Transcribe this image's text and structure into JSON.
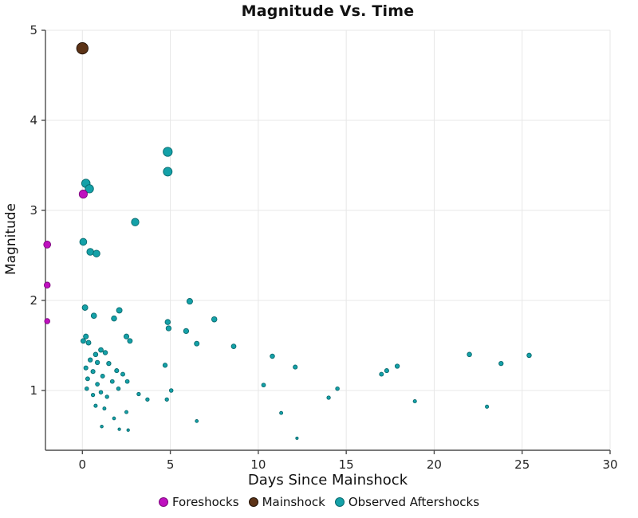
{
  "figure": {
    "background": "#FFFFFF"
  },
  "chart_data": {
    "type": "scatter",
    "title": "Magnitude Vs. Time",
    "xlabel": "Days Since Mainshock",
    "ylabel": "Magnitude",
    "xlim": [
      -2.1,
      30
    ],
    "ylim": [
      0.336,
      5.0
    ],
    "xticks": [
      0,
      5,
      10,
      15,
      20,
      25,
      30
    ],
    "yticks": [
      1,
      2,
      3,
      4,
      5
    ],
    "grid": true,
    "legend_position": "bottom",
    "size_encoding": "marker size proportional to magnitude",
    "style": {
      "grid_color": "#E7E7E7",
      "spine_color": "#4D4D4D",
      "tick_label_color": "#262626",
      "title_color": "#111111"
    },
    "series": [
      {
        "name": "Foreshocks",
        "color": "#BF10BF",
        "edge_color": "#7D087D",
        "points": [
          [
            -2.0,
            2.62
          ],
          [
            -2.0,
            2.17
          ],
          [
            -2.0,
            1.77
          ],
          [
            0.05,
            3.18
          ]
        ]
      },
      {
        "name": "Mainshock",
        "color": "#5C3317",
        "edge_color": "#1F1005",
        "points": [
          [
            0.0,
            4.8
          ]
        ]
      },
      {
        "name": "Observed Aftershocks",
        "color": "#14A1A8",
        "edge_color": "#0A6A6E",
        "points": [
          [
            4.85,
            3.65
          ],
          [
            4.85,
            3.43
          ],
          [
            0.2,
            3.3
          ],
          [
            0.4,
            3.24
          ],
          [
            3.0,
            2.87
          ],
          [
            0.05,
            2.65
          ],
          [
            0.45,
            2.54
          ],
          [
            0.8,
            2.52
          ],
          [
            6.1,
            1.99
          ],
          [
            0.15,
            1.92
          ],
          [
            2.1,
            1.89
          ],
          [
            0.65,
            1.83
          ],
          [
            1.8,
            1.8
          ],
          [
            7.5,
            1.79
          ],
          [
            4.85,
            1.76
          ],
          [
            4.9,
            1.69
          ],
          [
            5.9,
            1.66
          ],
          [
            0.2,
            1.6
          ],
          [
            2.5,
            1.6
          ],
          [
            2.7,
            1.55
          ],
          [
            0.05,
            1.55
          ],
          [
            0.35,
            1.53
          ],
          [
            6.5,
            1.52
          ],
          [
            8.6,
            1.49
          ],
          [
            1.05,
            1.45
          ],
          [
            1.3,
            1.42
          ],
          [
            0.75,
            1.4
          ],
          [
            22.0,
            1.4
          ],
          [
            25.4,
            1.39
          ],
          [
            10.8,
            1.38
          ],
          [
            0.45,
            1.34
          ],
          [
            0.85,
            1.31
          ],
          [
            1.5,
            1.3
          ],
          [
            23.8,
            1.3
          ],
          [
            4.7,
            1.28
          ],
          [
            17.9,
            1.27
          ],
          [
            12.1,
            1.26
          ],
          [
            0.2,
            1.25
          ],
          [
            17.3,
            1.22
          ],
          [
            1.95,
            1.22
          ],
          [
            0.6,
            1.21
          ],
          [
            2.3,
            1.18
          ],
          [
            17.0,
            1.18
          ],
          [
            1.15,
            1.16
          ],
          [
            0.3,
            1.13
          ],
          [
            1.7,
            1.1
          ],
          [
            2.55,
            1.1
          ],
          [
            0.85,
            1.07
          ],
          [
            10.3,
            1.06
          ],
          [
            0.25,
            1.02
          ],
          [
            2.05,
            1.02
          ],
          [
            14.5,
            1.02
          ],
          [
            5.05,
            1.0
          ],
          [
            1.05,
            0.98
          ],
          [
            3.2,
            0.96
          ],
          [
            0.6,
            0.95
          ],
          [
            1.4,
            0.93
          ],
          [
            14.0,
            0.92
          ],
          [
            3.7,
            0.9
          ],
          [
            4.8,
            0.9
          ],
          [
            18.9,
            0.88
          ],
          [
            0.75,
            0.83
          ],
          [
            23.0,
            0.82
          ],
          [
            1.25,
            0.8
          ],
          [
            2.5,
            0.76
          ],
          [
            11.3,
            0.75
          ],
          [
            1.8,
            0.69
          ],
          [
            6.5,
            0.66
          ],
          [
            1.1,
            0.6
          ],
          [
            2.1,
            0.57
          ],
          [
            2.6,
            0.56
          ],
          [
            12.2,
            0.47
          ]
        ]
      }
    ]
  }
}
